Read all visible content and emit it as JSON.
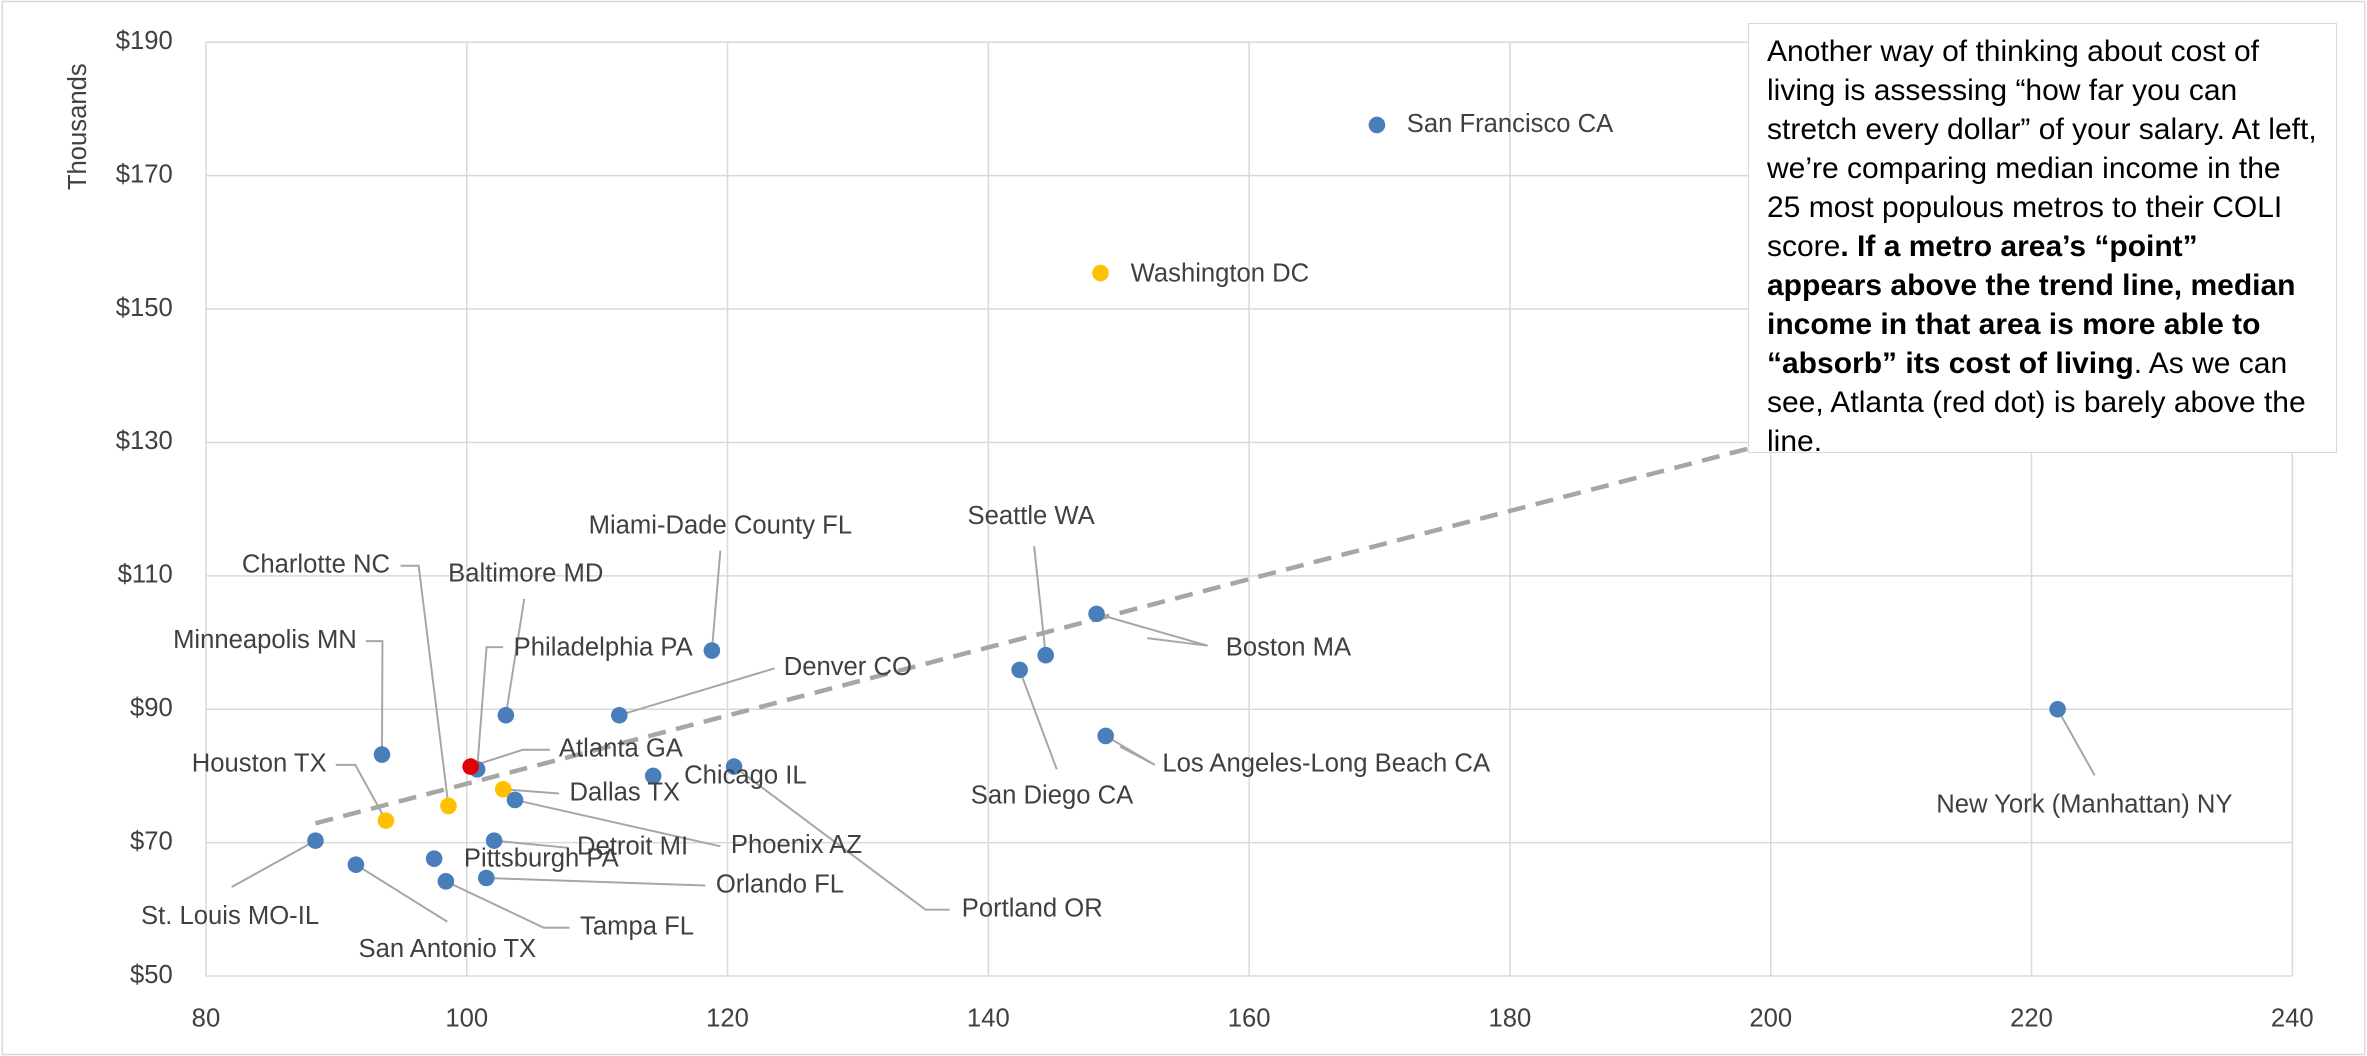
{
  "chart_data": {
    "type": "scatter",
    "y_axis_label": "Thousands",
    "xlim": [
      80,
      240
    ],
    "xticks": [
      80,
      100,
      120,
      140,
      160,
      180,
      200,
      220,
      240
    ],
    "ylim": [
      50,
      190
    ],
    "yticks": [
      {
        "value": 50,
        "label": "$50"
      },
      {
        "value": 70,
        "label": "$70"
      },
      {
        "value": 90,
        "label": "$90"
      },
      {
        "value": 110,
        "label": "$110"
      },
      {
        "value": 130,
        "label": "$130"
      },
      {
        "value": 150,
        "label": "$150"
      },
      {
        "value": 170,
        "label": "$170"
      },
      {
        "value": 190,
        "label": "$190"
      }
    ],
    "grid": true,
    "labels": [
      "San Francisco CA",
      "Washington DC",
      "New York (Manhattan) NY",
      "Boston MA",
      "Seattle WA",
      "San Diego CA",
      "Los Angeles-Long Beach CA",
      "Miami-Dade County FL",
      "Denver CO",
      "Baltimore MD",
      "Minneapolis MN",
      "Philadelphia PA",
      "Atlanta GA",
      "Charlotte NC",
      "Houston TX",
      "Dallas TX",
      "Phoenix AZ",
      "Chicago IL",
      "Portland OR",
      "Detroit MI",
      "Pittsburgh PA",
      "Orlando FL",
      "Tampa FL",
      "St. Louis MO-IL",
      "San Antonio TX"
    ],
    "x": [
      169.8,
      148.6,
      222,
      148.3,
      144.4,
      142.4,
      149,
      118.8,
      111.7,
      103,
      93.5,
      100.8,
      100.3,
      98.6,
      93.8,
      102.8,
      103.7,
      114.3,
      120.5,
      102.1,
      97.5,
      101.5,
      98.4,
      88.4,
      91.5
    ],
    "values": [
      177.6,
      155.4,
      90,
      104.3,
      98.1,
      95.9,
      86,
      98.8,
      89.1,
      89.1,
      83.2,
      81,
      81.4,
      75.5,
      73.3,
      78,
      76.4,
      80,
      81.4,
      70.3,
      67.6,
      64.7,
      64.2,
      70.3,
      66.7
    ],
    "colors": [
      "#4a7ebb",
      "#ffc000",
      "#4a7ebb",
      "#4a7ebb",
      "#4a7ebb",
      "#4a7ebb",
      "#4a7ebb",
      "#4a7ebb",
      "#4a7ebb",
      "#4a7ebb",
      "#4a7ebb",
      "#4a7ebb",
      "#e00000",
      "#ffc000",
      "#ffc000",
      "#ffc000",
      "#4a7ebb",
      "#4a7ebb",
      "#4a7ebb",
      "#4a7ebb",
      "#4a7ebb",
      "#4a7ebb",
      "#4a7ebb",
      "#4a7ebb",
      "#4a7ebb"
    ],
    "trendline": {
      "x": [
        88.4,
        222
      ],
      "y": [
        72.9,
        141.2
      ],
      "color": "#a6a6a6",
      "dashed": true
    },
    "annotation": [
      {
        "text": "Another way of thinking about cost of living is assessing “how far you can stretch every dollar” of your salary. At left, we’re comparing median income in the 25 most populous metros to their COLI score",
        "bold": false
      },
      {
        "text": ". If a metro area’s “point” appears above the trend line, median income in that area is more able to “absorb” its cost of living",
        "bold": true
      },
      {
        "text": ". As we can see, Atlanta (red dot) is barely above the line.",
        "bold": false
      }
    ]
  }
}
